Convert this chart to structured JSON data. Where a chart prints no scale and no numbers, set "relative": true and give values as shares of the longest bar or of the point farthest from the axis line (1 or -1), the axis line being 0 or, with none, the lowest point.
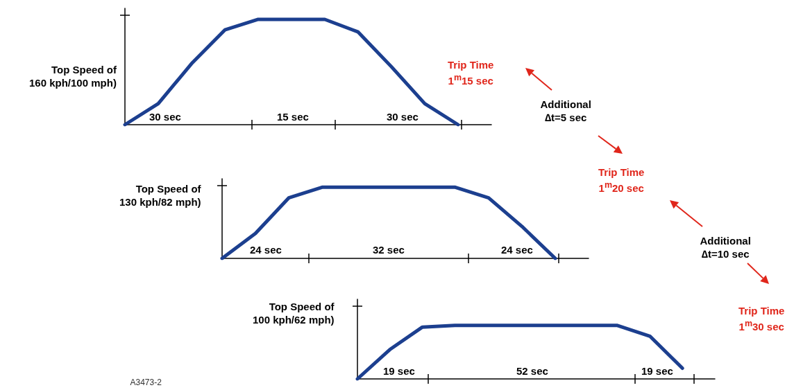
{
  "chart_data": [
    {
      "type": "line",
      "relative": true,
      "ylabel": "Top Speed of\n160 kph/100 mph)",
      "categories": [
        null,
        null,
        null,
        null,
        null,
        null,
        null,
        null,
        null,
        null,
        null,
        null
      ],
      "series": [
        {
          "color": "#1c3f8f",
          "values": [
            0,
            0.2,
            0.58,
            0.9,
            1,
            1,
            1,
            0.88,
            0.55,
            0.2,
            0,
            null
          ]
        }
      ],
      "annotations": [
        "30 sec",
        "15 sec",
        "30 sec",
        "Trip Time\n1$^{m}$15 sec",
        "Additional\n∆t=5 sec"
      ]
    },
    {
      "type": "line",
      "relative": true,
      "ylabel": "Top Speed of\n130 kph/82 mph)",
      "categories": [
        null,
        null,
        null,
        null,
        null,
        null,
        null,
        null,
        null,
        null,
        null,
        null
      ],
      "series": [
        {
          "color": "#1c3f8f",
          "values": [
            0,
            0.35,
            0.85,
            1,
            1,
            1,
            1,
            1,
            0.85,
            0.45,
            0,
            null
          ]
        }
      ],
      "annotations": [
        "24 sec",
        "32 sec",
        "24 sec",
        "Trip Time\n1$^{m}$20 sec",
        "Additional\n∆t=10 sec"
      ]
    },
    {
      "type": "line",
      "relative": true,
      "ylabel": "Top Speed of\n100 kph/62 mph)",
      "categories": [
        null,
        null,
        null,
        null,
        null,
        null,
        null,
        null,
        null,
        null,
        null,
        null
      ],
      "series": [
        {
          "color": "#1c3f8f",
          "values": [
            0,
            0.55,
            0.97,
            1,
            1,
            1,
            1,
            1,
            1,
            0.8,
            0.2,
            null
          ]
        }
      ],
      "annotations": [
        "19 sec",
        "52 sec",
        "19 sec",
        "Trip Time\n1$^{m}$30 sec",
        "A3473-2"
      ]
    }
  ]
}
